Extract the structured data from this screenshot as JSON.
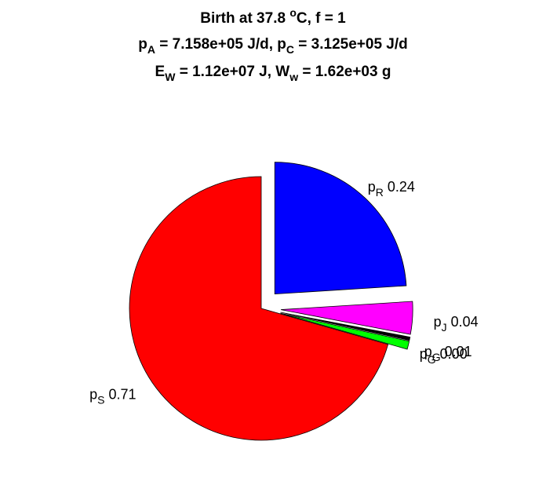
{
  "title": {
    "line1": {
      "prefix": "Birth at 37.8 ",
      "sup": "o",
      "suffix": "C, f = 1"
    },
    "line2": {
      "a_base": "p",
      "a_sub": "A",
      "a_val": " = 7.158e+05 J/d, ",
      "c_base": "p",
      "c_sub": "C",
      "c_val": " = 3.125e+05 J/d"
    },
    "line3": {
      "e_base": "E",
      "e_sub": "W",
      "e_val": " = 1.12e+07 J, ",
      "w_base": "W",
      "w_sub": "w",
      "w_val": " = 1.62e+03 g"
    }
  },
  "chart_data": {
    "type": "pie",
    "title": "Birth at 37.8 oC, f = 1 / pA = 7.158e+05 J/d, pC = 3.125e+05 J/d / EW = 1.12e+07 J, Ww = 1.62e+03 g",
    "slices": [
      {
        "base": "p",
        "sub": "R",
        "value_label": "0.24",
        "value": 0.24,
        "color": "#0000ff",
        "exploded": true
      },
      {
        "base": "p",
        "sub": "J",
        "value_label": "0.04",
        "value": 0.04,
        "color": "#ff00ff",
        "exploded": true
      },
      {
        "base": "p",
        "sub": "G",
        "value_label": "0.00",
        "value": 0.004,
        "color": "#000000",
        "exploded": true
      },
      {
        "base": "p",
        "sub": "G",
        "value_label": "0.01",
        "value": 0.01,
        "color": "#00ff00",
        "exploded": true
      },
      {
        "base": "p",
        "sub": "S",
        "value_label": "0.71",
        "value": 0.706,
        "color": "#ff0000",
        "exploded": false
      }
    ]
  }
}
